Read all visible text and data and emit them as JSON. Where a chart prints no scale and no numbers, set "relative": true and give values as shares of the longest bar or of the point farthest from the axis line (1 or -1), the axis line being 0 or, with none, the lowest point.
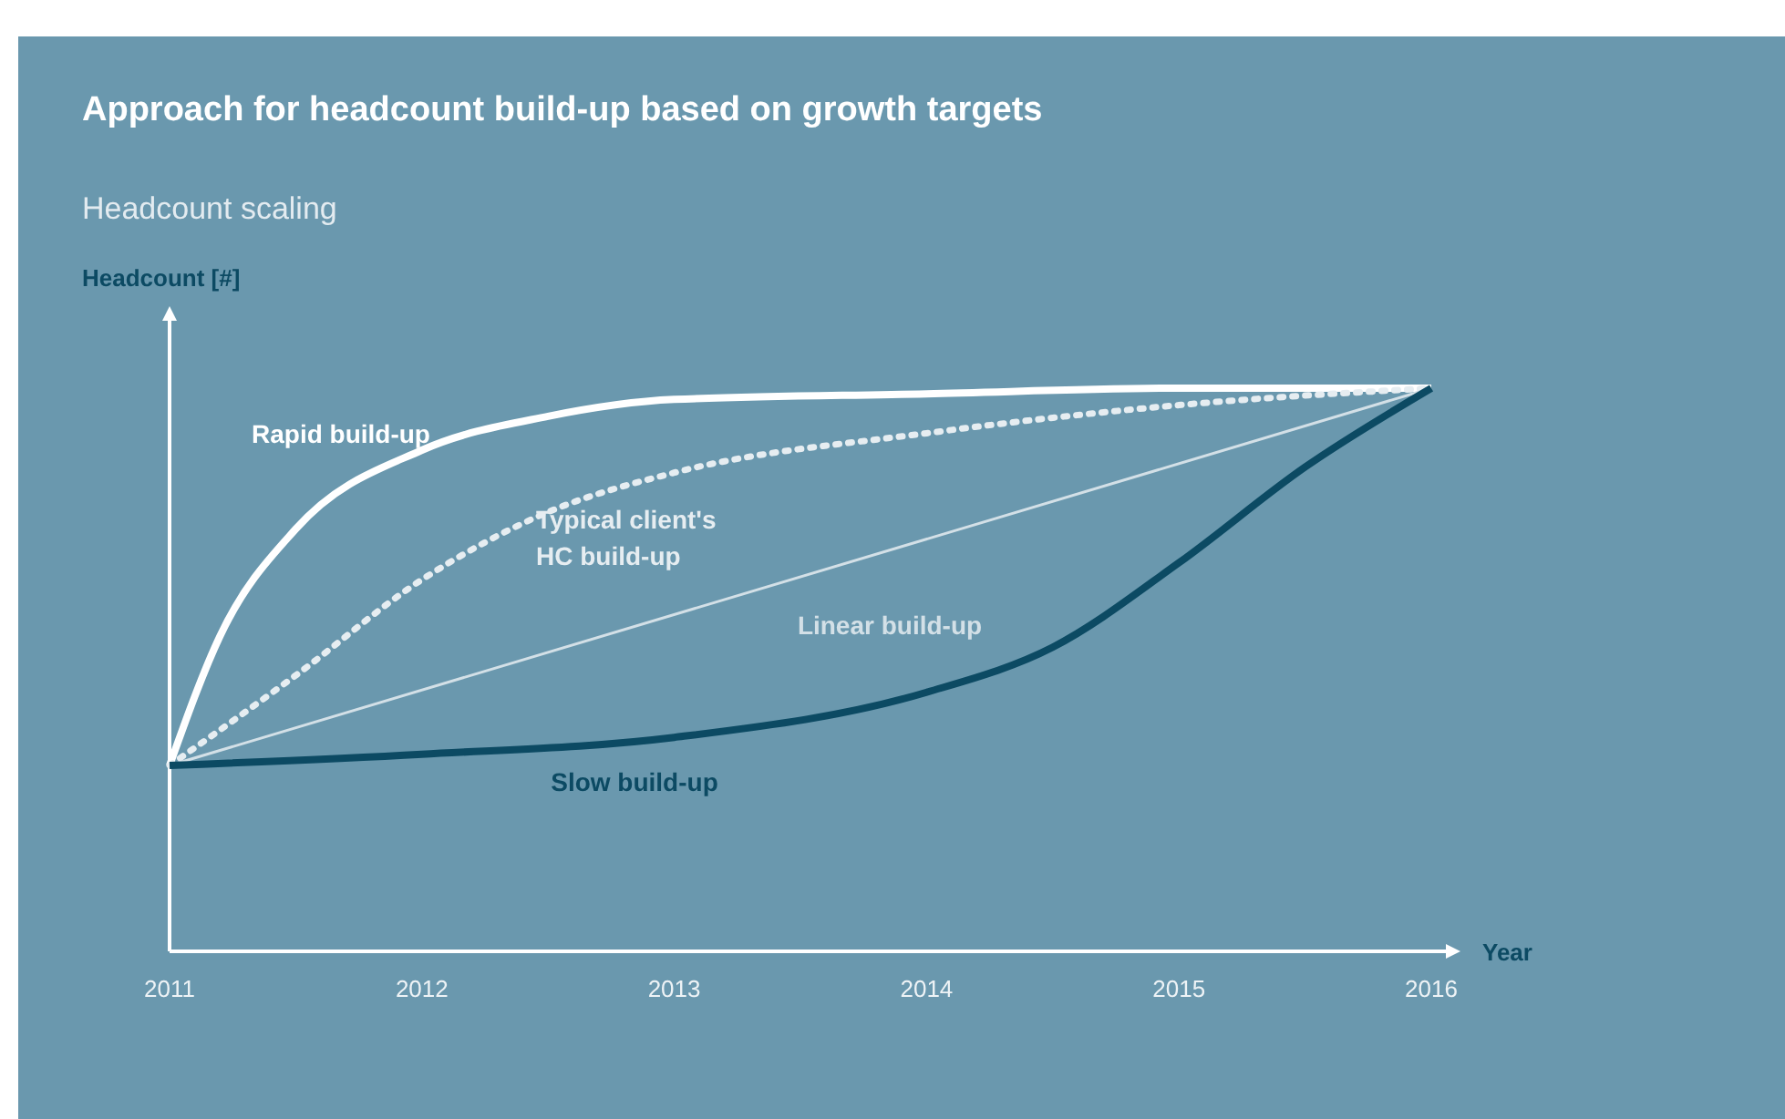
{
  "chart_data": {
    "type": "line",
    "title": "Approach for headcount build-up based on growth targets",
    "subtitle": "Headcount scaling",
    "ylabel": "Headcount [#]",
    "xlabel": "Year",
    "relative": true,
    "xlim": [
      2011,
      2016
    ],
    "xticks": [
      2011,
      2012,
      2013,
      2014,
      2015,
      2016
    ],
    "grid": false,
    "legend": false,
    "marker": "none",
    "series": [
      {
        "name": "Rapid build-up",
        "color": "#ffffff",
        "line_style": "solid",
        "x": [
          2011,
          2011.2,
          2011.5,
          2012,
          2012.5,
          2013,
          2014,
          2015,
          2016
        ],
        "values": [
          0.33,
          0.56,
          0.75,
          0.89,
          0.95,
          0.98,
          0.99,
          1,
          1
        ]
      },
      {
        "name": "Typical client's HC build-up",
        "color": "#e6edf1",
        "line_style": "dotted",
        "x": [
          2011,
          2011.5,
          2012,
          2012.5,
          2013,
          2014,
          2015,
          2016
        ],
        "values": [
          0.33,
          0.49,
          0.66,
          0.78,
          0.85,
          0.92,
          0.97,
          1
        ]
      },
      {
        "name": "Linear build-up",
        "color": "#d3e0e7",
        "line_style": "solid",
        "x": [
          2011,
          2016
        ],
        "values": [
          0.33,
          1
        ]
      },
      {
        "name": "Slow build-up",
        "color": "#0c4a63",
        "line_style": "solid",
        "x": [
          2011,
          2012,
          2013,
          2014,
          2014.5,
          2015,
          2015.5,
          2016
        ],
        "values": [
          0.33,
          0.35,
          0.38,
          0.46,
          0.54,
          0.69,
          0.86,
          1
        ]
      }
    ]
  }
}
